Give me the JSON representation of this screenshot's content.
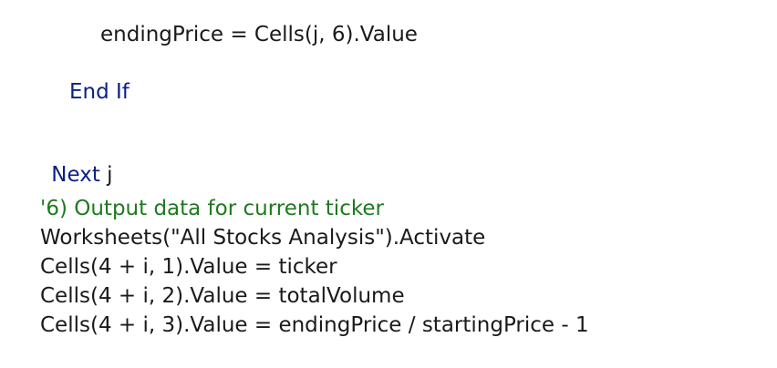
{
  "code": {
    "ending_price_line": "endingPrice = Cells(j, 6).Value",
    "end_if_line": "End If",
    "next_keyword": "Next",
    "next_var": " j",
    "comment_line": "'6) Output data for current ticker",
    "activate_line": "Worksheets(\"All Stocks Analysis\").Activate",
    "cells_ticker_line": "Cells(4 + i, 1).Value = ticker",
    "cells_volume_line": "Cells(4 + i, 2).Value = totalVolume",
    "cells_return_line": "Cells(4 + i, 3).Value = endingPrice / startingPrice - 1"
  },
  "colors": {
    "text": "#1a1a1a",
    "keyword": "#0b1f86",
    "comment": "#1f7a1f",
    "background": "#ffffff"
  }
}
